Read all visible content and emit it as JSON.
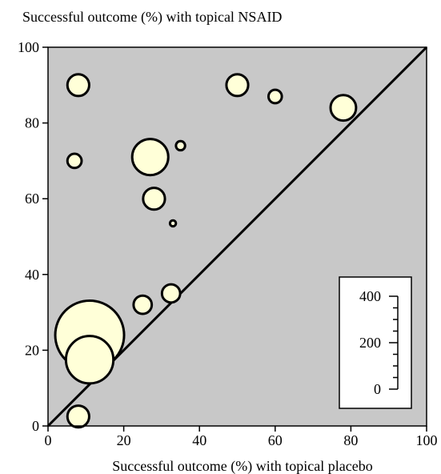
{
  "chart_data": {
    "type": "bubble",
    "ylabel": "Successful outcome (%) with topical NSAID",
    "xlabel": "Successful outcome (%) with topical placebo",
    "xlim": [
      0,
      100
    ],
    "ylim": [
      0,
      100
    ],
    "x_ticks": [
      "0",
      "20",
      "40",
      "60",
      "80",
      "100"
    ],
    "y_ticks": [
      "0",
      "20",
      "40",
      "60",
      "80",
      "100"
    ],
    "reference_line": "y = x",
    "plot_background": "#c8c8c8",
    "bubble_fill": "#ffffd8",
    "size_legend": {
      "ticks": [
        "400",
        "200",
        "0"
      ],
      "range": [
        0,
        400
      ],
      "position": "bottom-right"
    },
    "points": [
      {
        "x": 8,
        "y": 90,
        "size": 40
      },
      {
        "x": 50,
        "y": 90,
        "size": 40
      },
      {
        "x": 60,
        "y": 87,
        "size": 15
      },
      {
        "x": 78,
        "y": 84,
        "size": 55
      },
      {
        "x": 7,
        "y": 70,
        "size": 17
      },
      {
        "x": 27,
        "y": 71,
        "size": 110
      },
      {
        "x": 35,
        "y": 74,
        "size": 7
      },
      {
        "x": 28,
        "y": 60,
        "size": 40
      },
      {
        "x": 33,
        "y": 53.5,
        "size": 3
      },
      {
        "x": 25,
        "y": 32,
        "size": 28
      },
      {
        "x": 32.5,
        "y": 35,
        "size": 28
      },
      {
        "x": 11,
        "y": 24,
        "size": 400
      },
      {
        "x": 11,
        "y": 17.5,
        "size": 190
      },
      {
        "x": 8,
        "y": 2.5,
        "size": 40
      }
    ]
  }
}
